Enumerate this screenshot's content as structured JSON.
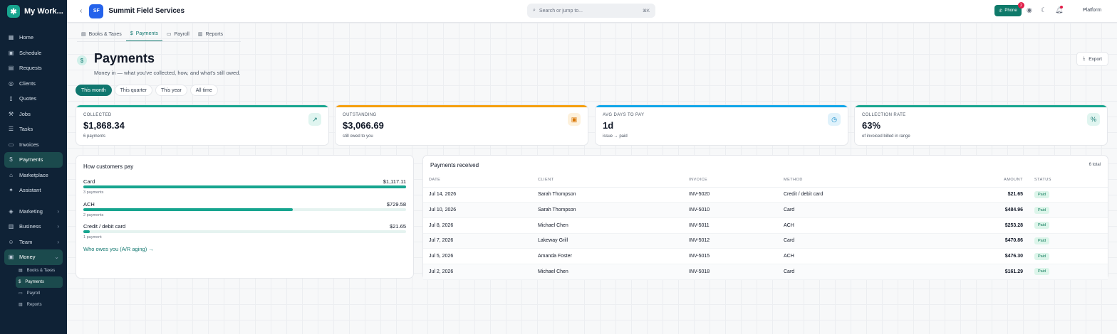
{
  "app": {
    "name": "My Work...",
    "logo_icon": "asterisk-icon"
  },
  "sidebar": {
    "items": [
      {
        "label": "Home",
        "icon": "grid-icon"
      },
      {
        "label": "Schedule",
        "icon": "calendar-icon"
      },
      {
        "label": "Requests",
        "icon": "inbox-icon"
      },
      {
        "label": "Clients",
        "icon": "user-icon"
      },
      {
        "label": "Quotes",
        "icon": "file-icon"
      },
      {
        "label": "Jobs",
        "icon": "wrench-icon"
      },
      {
        "label": "Tasks",
        "icon": "list-icon"
      },
      {
        "label": "Invoices",
        "icon": "receipt-icon"
      },
      {
        "label": "Payments",
        "icon": "dollar-icon"
      },
      {
        "label": "Marketplace",
        "icon": "store-icon"
      },
      {
        "label": "Assistant",
        "icon": "sparkle-icon"
      }
    ],
    "groups": [
      {
        "label": "Marketing",
        "icon": "megaphone-icon"
      },
      {
        "label": "Business",
        "icon": "building-icon"
      },
      {
        "label": "Team",
        "icon": "users-icon"
      },
      {
        "label": "Money",
        "icon": "wallet-icon"
      }
    ],
    "money_sub": [
      {
        "label": "Books & Taxes",
        "icon": "book-icon"
      },
      {
        "label": "Payments",
        "icon": "dollar-icon"
      },
      {
        "label": "Payroll",
        "icon": "payroll-icon"
      },
      {
        "label": "Reports",
        "icon": "chart-icon"
      }
    ]
  },
  "topbar": {
    "initials": "SF",
    "company": "Summit Field Services",
    "search_placeholder": "Search or jump to...",
    "search_shortcut": "⌘K",
    "phone_label": "Phone",
    "phone_badge": "2",
    "platform_label": "Platform"
  },
  "tabs": [
    {
      "label": "Books & Taxes",
      "icon": "book-icon"
    },
    {
      "label": "Payments",
      "icon": "dollar-icon"
    },
    {
      "label": "Payroll",
      "icon": "payroll-icon"
    },
    {
      "label": "Reports",
      "icon": "chart-icon"
    }
  ],
  "page": {
    "title": "Payments",
    "subtitle": "Money in — what you've collected, how, and what's still owed.",
    "export_label": "Export"
  },
  "ranges": [
    "This month",
    "This quarter",
    "This year",
    "All time"
  ],
  "kpis": [
    {
      "label": "COLLECTED",
      "value": "$1,868.34",
      "sub": "6 payments",
      "icon": "trend-up-icon",
      "color": "#17a58f",
      "icon_bg": "#e0f5f0",
      "icon_color": "#0f766e"
    },
    {
      "label": "OUTSTANDING",
      "value": "$3,066.69",
      "sub": "still owed to you",
      "icon": "calendar-icon",
      "color": "#f59e0b",
      "icon_bg": "#fdf1dc",
      "icon_color": "#d97706"
    },
    {
      "label": "AVG DAYS TO PAY",
      "value": "1d",
      "sub": "issue → paid",
      "icon": "clock-icon",
      "color": "#0ea5e9",
      "icon_bg": "#e0f2fb",
      "icon_color": "#0284c7"
    },
    {
      "label": "COLLECTION RATE",
      "value": "63%",
      "sub": "of invoiced billed in range",
      "icon": "percent-icon",
      "color": "#17a58f",
      "icon_bg": "#e0f5f0",
      "icon_color": "#0f766e"
    }
  ],
  "customers_pay": {
    "title": "How customers pay",
    "methods": [
      {
        "name": "Card",
        "amount": "$1,117.11",
        "count": "3 payments",
        "share": 1.0
      },
      {
        "name": "ACH",
        "amount": "$729.58",
        "count": "2 payments",
        "share": 0.65
      },
      {
        "name": "Credit / debit card",
        "amount": "$21.65",
        "count": "1 payment",
        "share": 0.02
      }
    ],
    "aging_link": "Who owes you (A/R aging) →"
  },
  "received": {
    "title": "Payments received",
    "total": "6 total",
    "headers": [
      "DATE",
      "CLIENT",
      "INVOICE",
      "METHOD",
      "AMOUNT",
      "STATUS"
    ],
    "rows": [
      {
        "date": "Jul 14, 2026",
        "client": "Sarah Thompson",
        "invoice": "INV-5020",
        "method": "Credit / debit card",
        "amount": "$21.65",
        "status": "Paid"
      },
      {
        "date": "Jul 10, 2026",
        "client": "Sarah Thompson",
        "invoice": "INV-5010",
        "method": "Card",
        "amount": "$484.96",
        "status": "Paid"
      },
      {
        "date": "Jul 8, 2026",
        "client": "Michael Chen",
        "invoice": "INV-5011",
        "method": "ACH",
        "amount": "$253.28",
        "status": "Paid"
      },
      {
        "date": "Jul 7, 2026",
        "client": "Lakeway Grill",
        "invoice": "INV-5012",
        "method": "Card",
        "amount": "$470.86",
        "status": "Paid"
      },
      {
        "date": "Jul 5, 2026",
        "client": "Amanda Foster",
        "invoice": "INV-5015",
        "method": "ACH",
        "amount": "$476.30",
        "status": "Paid"
      },
      {
        "date": "Jul 2, 2026",
        "client": "Michael Chen",
        "invoice": "INV-5018",
        "method": "Card",
        "amount": "$161.29",
        "status": "Paid"
      }
    ]
  }
}
